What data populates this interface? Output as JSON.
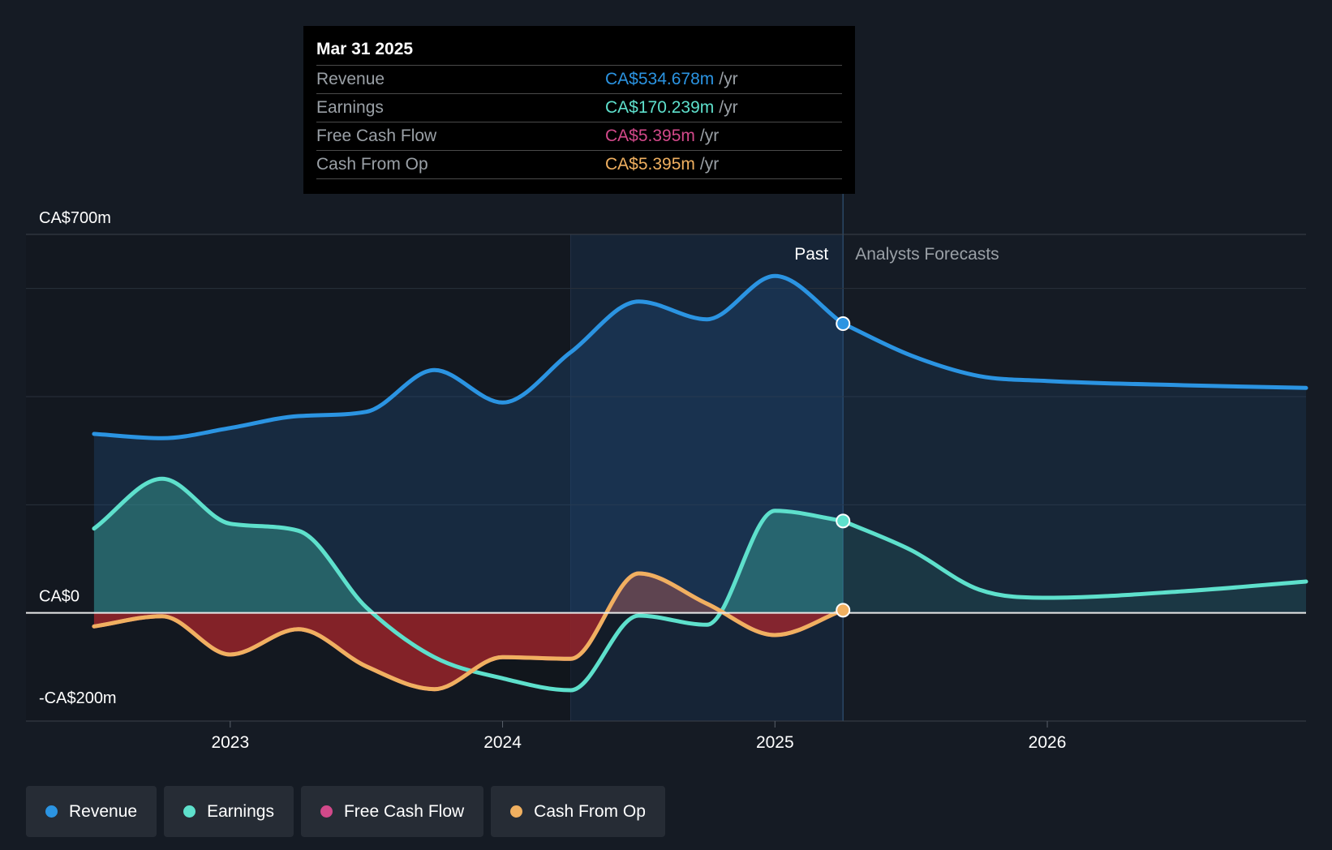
{
  "tooltip": {
    "date": "Mar 31 2025",
    "rows": [
      {
        "label": "Revenue",
        "value": "CA$534.678m",
        "unit": "/yr",
        "color": "#2b94e2"
      },
      {
        "label": "Earnings",
        "value": "CA$170.239m",
        "unit": "/yr",
        "color": "#5ee0cc"
      },
      {
        "label": "Free Cash Flow",
        "value": "CA$5.395m",
        "unit": "/yr",
        "color": "#d2498a"
      },
      {
        "label": "Cash From Op",
        "value": "CA$5.395m",
        "unit": "/yr",
        "color": "#f0b060"
      }
    ]
  },
  "legend": [
    {
      "label": "Revenue",
      "color": "#2b94e2"
    },
    {
      "label": "Earnings",
      "color": "#5ee0cc"
    },
    {
      "label": "Free Cash Flow",
      "color": "#d2498a"
    },
    {
      "label": "Cash From Op",
      "color": "#f0b060"
    }
  ],
  "chart_data": {
    "type": "line",
    "title": "",
    "y_unit": "CA$m",
    "ylim": [
      -200,
      700
    ],
    "xlim": [
      2022.25,
      2026.95
    ],
    "y_tick_labels": [
      {
        "value": 700,
        "label": "CA$700m"
      },
      {
        "value": 0,
        "label": "CA$0"
      },
      {
        "value": -200,
        "label": "-CA$200m"
      }
    ],
    "gridlines": [
      700,
      600,
      400,
      200,
      0,
      -200
    ],
    "x_ticks": [
      {
        "value": 2023,
        "label": "2023"
      },
      {
        "value": 2024,
        "label": "2024"
      },
      {
        "value": 2025,
        "label": "2025"
      },
      {
        "value": 2026,
        "label": "2026"
      }
    ],
    "past_label": "Past",
    "forecast_label": "Analysts Forecasts",
    "highlight_start": 2024.25,
    "forecast_start": 2025.25,
    "series": [
      {
        "name": "Revenue",
        "color": "#2b94e2",
        "points": [
          [
            2022.5,
            331
          ],
          [
            2022.75,
            323
          ],
          [
            2023.0,
            342
          ],
          [
            2023.25,
            364
          ],
          [
            2023.5,
            372
          ],
          [
            2023.75,
            449
          ],
          [
            2024.0,
            389
          ],
          [
            2024.25,
            482
          ],
          [
            2024.5,
            576
          ],
          [
            2024.75,
            543
          ],
          [
            2025.0,
            623
          ],
          [
            2025.25,
            535
          ]
        ],
        "forecast": [
          [
            2025.25,
            535
          ],
          [
            2025.5,
            476
          ],
          [
            2025.75,
            438
          ],
          [
            2026.0,
            429
          ],
          [
            2026.5,
            421
          ],
          [
            2026.95,
            416
          ]
        ]
      },
      {
        "name": "Earnings",
        "color": "#5ee0cc",
        "points": [
          [
            2022.5,
            156
          ],
          [
            2022.75,
            248
          ],
          [
            2023.0,
            165
          ],
          [
            2023.25,
            152
          ],
          [
            2023.5,
            10
          ],
          [
            2023.75,
            -82
          ],
          [
            2024.0,
            -121
          ],
          [
            2024.25,
            -143
          ],
          [
            2024.5,
            -5
          ],
          [
            2024.75,
            -22
          ],
          [
            2025.0,
            189
          ],
          [
            2025.25,
            170
          ]
        ],
        "forecast": [
          [
            2025.25,
            170
          ],
          [
            2025.5,
            116
          ],
          [
            2025.75,
            43
          ],
          [
            2026.0,
            28
          ],
          [
            2026.5,
            40
          ],
          [
            2026.95,
            58
          ]
        ]
      },
      {
        "name": "Free Cash Flow",
        "color": "#d2498a",
        "points": [
          [
            2022.5,
            -25
          ],
          [
            2022.75,
            -6
          ],
          [
            2023.0,
            -77
          ],
          [
            2023.25,
            -30
          ],
          [
            2023.5,
            -99
          ],
          [
            2023.75,
            -141
          ],
          [
            2024.0,
            -82
          ],
          [
            2024.25,
            -85
          ],
          [
            2024.5,
            73
          ],
          [
            2024.75,
            17
          ],
          [
            2025.0,
            -41
          ],
          [
            2025.25,
            5
          ]
        ]
      },
      {
        "name": "Cash From Op",
        "color": "#f0b060",
        "points": [
          [
            2022.5,
            -25
          ],
          [
            2022.75,
            -6
          ],
          [
            2023.0,
            -77
          ],
          [
            2023.25,
            -30
          ],
          [
            2023.5,
            -99
          ],
          [
            2023.75,
            -141
          ],
          [
            2024.0,
            -82
          ],
          [
            2024.25,
            -85
          ],
          [
            2024.5,
            73
          ],
          [
            2024.75,
            17
          ],
          [
            2025.0,
            -41
          ],
          [
            2025.25,
            5
          ]
        ]
      }
    ]
  }
}
